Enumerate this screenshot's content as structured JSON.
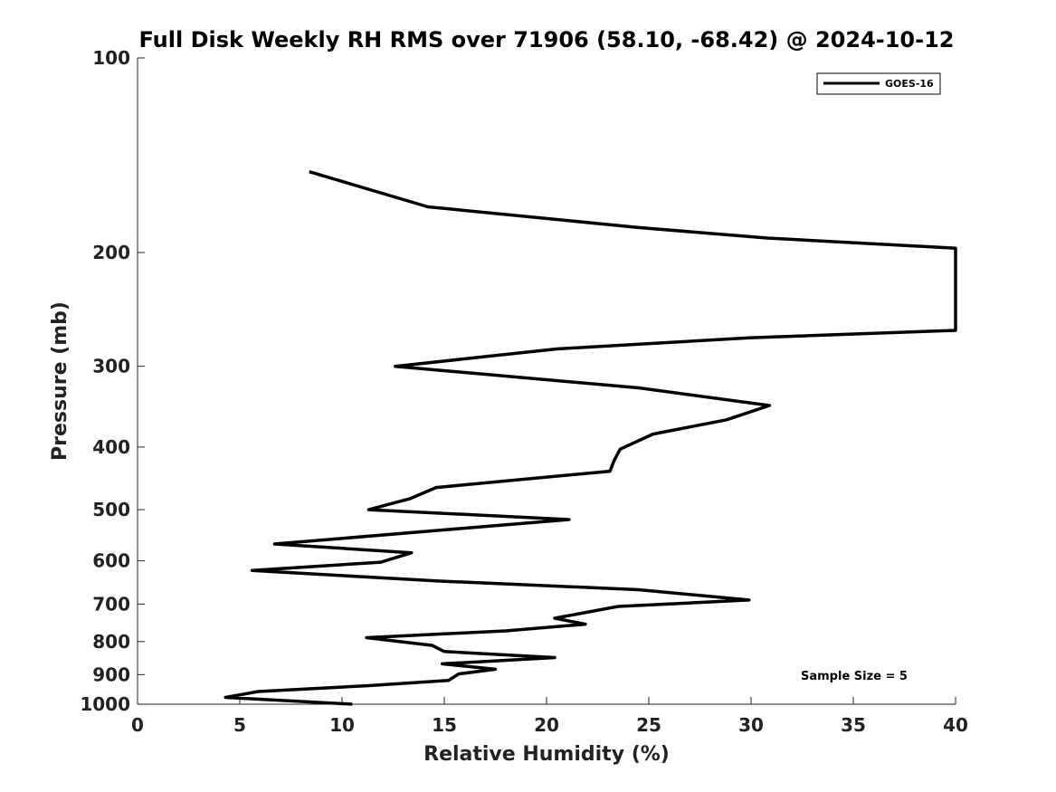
{
  "chart_data": {
    "type": "line",
    "title": "Full Disk Weekly RH RMS over 71906 (58.10, -68.42) @ 2024-10-12",
    "xlabel": "Relative Humidity (%)",
    "ylabel": "Pressure (mb)",
    "xlim": [
      0,
      40
    ],
    "ylim": [
      100,
      1000
    ],
    "y_scale": "log",
    "y_reversed": true,
    "x_ticks": [
      "0",
      "5",
      "10",
      "15",
      "20",
      "25",
      "30",
      "35",
      "40"
    ],
    "y_ticks": [
      "100",
      "200",
      "300",
      "400",
      "500",
      "600",
      "700",
      "800",
      "900",
      "1000"
    ],
    "grid": false,
    "legend_position": "top-right",
    "annotation": "Sample Size = 5",
    "series": [
      {
        "name": "GOES-16",
        "color": "#000000",
        "points": [
          {
            "x": 8.4,
            "y": 150
          },
          {
            "x": 14.2,
            "y": 170
          },
          {
            "x": 24.5,
            "y": 183
          },
          {
            "x": 30.8,
            "y": 190
          },
          {
            "x": 40.0,
            "y": 197
          },
          {
            "x": 40.0,
            "y": 264
          },
          {
            "x": 30.0,
            "y": 271
          },
          {
            "x": 20.5,
            "y": 282
          },
          {
            "x": 12.6,
            "y": 300
          },
          {
            "x": 24.5,
            "y": 324
          },
          {
            "x": 30.9,
            "y": 345
          },
          {
            "x": 28.8,
            "y": 363
          },
          {
            "x": 25.2,
            "y": 382
          },
          {
            "x": 23.6,
            "y": 403
          },
          {
            "x": 23.3,
            "y": 420
          },
          {
            "x": 23.1,
            "y": 436
          },
          {
            "x": 14.6,
            "y": 462
          },
          {
            "x": 13.3,
            "y": 481
          },
          {
            "x": 11.3,
            "y": 500
          },
          {
            "x": 21.1,
            "y": 518
          },
          {
            "x": 14.8,
            "y": 538
          },
          {
            "x": 6.7,
            "y": 565
          },
          {
            "x": 13.4,
            "y": 583
          },
          {
            "x": 11.9,
            "y": 603
          },
          {
            "x": 5.6,
            "y": 621
          },
          {
            "x": 14.8,
            "y": 645
          },
          {
            "x": 24.5,
            "y": 665
          },
          {
            "x": 29.9,
            "y": 690
          },
          {
            "x": 23.5,
            "y": 706
          },
          {
            "x": 20.4,
            "y": 736
          },
          {
            "x": 21.9,
            "y": 752
          },
          {
            "x": 18.0,
            "y": 770
          },
          {
            "x": 11.2,
            "y": 789
          },
          {
            "x": 14.4,
            "y": 811
          },
          {
            "x": 15.0,
            "y": 829
          },
          {
            "x": 20.4,
            "y": 847
          },
          {
            "x": 14.9,
            "y": 866
          },
          {
            "x": 17.5,
            "y": 883
          },
          {
            "x": 15.7,
            "y": 898
          },
          {
            "x": 15.2,
            "y": 919
          },
          {
            "x": 11.3,
            "y": 936
          },
          {
            "x": 5.9,
            "y": 956
          },
          {
            "x": 4.3,
            "y": 976
          },
          {
            "x": 10.5,
            "y": 1000
          }
        ]
      }
    ]
  }
}
